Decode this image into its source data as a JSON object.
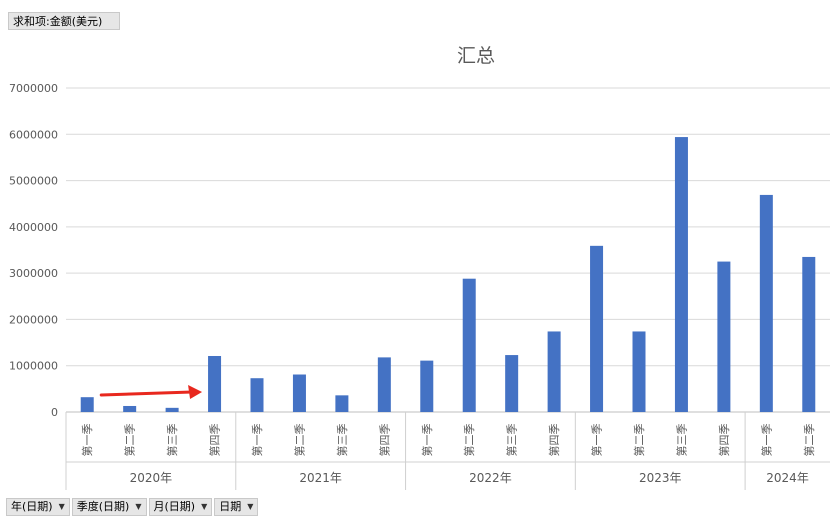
{
  "value_field": {
    "label": "求和项:金额(美元)"
  },
  "axis_fields": [
    {
      "label": "年(日期)",
      "icon": "dropdown-arrow-icon"
    },
    {
      "label": "季度(日期)",
      "icon": "dropdown-arrow-icon"
    },
    {
      "label": "月(日期)",
      "icon": "dropdown-arrow-icon"
    },
    {
      "label": "日期",
      "icon": "dropdown-arrow-icon"
    }
  ],
  "colors": {
    "bar": "#4472C4",
    "grid": "#d9d9d9",
    "arrow": "#e8281e",
    "text": "#595959"
  },
  "annotation": {
    "type": "arrow",
    "color": "#e8281e",
    "points_to": "2020年 第四季"
  },
  "chart_data": {
    "type": "bar",
    "title": "汇总",
    "xlabel": "",
    "ylabel": "",
    "ylim": [
      0,
      7000000
    ],
    "yticks": [
      0,
      1000000,
      2000000,
      3000000,
      4000000,
      5000000,
      6000000,
      7000000
    ],
    "ytick_labels": [
      "0",
      "1000000",
      "2000000",
      "3000000",
      "4000000",
      "5000000",
      "6000000",
      "7000000"
    ],
    "grid": true,
    "legend": "none",
    "groups": [
      {
        "label": "2020年",
        "categories": [
          "第一季",
          "第二季",
          "第三季",
          "第四季"
        ],
        "values": [
          320000,
          130000,
          90000,
          1210000
        ]
      },
      {
        "label": "2021年",
        "categories": [
          "第一季",
          "第二季",
          "第三季",
          "第四季"
        ],
        "values": [
          730000,
          810000,
          360000,
          1180000
        ]
      },
      {
        "label": "2022年",
        "categories": [
          "第一季",
          "第二季",
          "第三季",
          "第四季"
        ],
        "values": [
          1110000,
          2880000,
          1230000,
          1740000
        ]
      },
      {
        "label": "2023年",
        "categories": [
          "第一季",
          "第二季",
          "第三季",
          "第四季"
        ],
        "values": [
          3590000,
          1740000,
          5940000,
          3250000
        ]
      },
      {
        "label": "2024年",
        "categories": [
          "第一季",
          "第二季"
        ],
        "values": [
          4690000,
          3350000
        ]
      }
    ]
  }
}
